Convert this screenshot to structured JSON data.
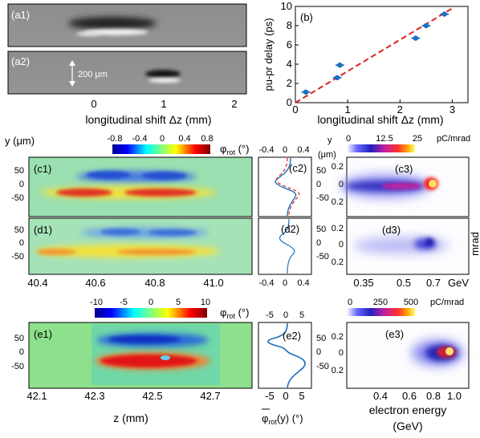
{
  "panel_labels": {
    "a1": "(a1)",
    "a2": "(a2)",
    "b": "(b)",
    "c1": "(c1)",
    "c2": "(c2)",
    "c3": "(c3)",
    "d1": "(d1)",
    "d2": "(d2)",
    "d3": "(d3)",
    "e1": "(e1)",
    "e2": "(e2)",
    "e3": "(e3)"
  },
  "scale_bar": "200 μm",
  "a_axis": {
    "ticks": [
      "0",
      "1",
      "2"
    ],
    "xlabel": "longitudinal shift Δz (mm)"
  },
  "chart_data": [
    {
      "type": "scatter",
      "panel": "(b)",
      "x": [
        0.2,
        0.8,
        0.85,
        2.3,
        2.5,
        2.85
      ],
      "y": [
        1.1,
        2.6,
        3.9,
        6.7,
        8.0,
        9.2
      ],
      "x_error": [
        0.08,
        0.08,
        0.08,
        0.08,
        0.08,
        0.08
      ],
      "fit_line": {
        "x": [
          0,
          3
        ],
        "y": [
          0,
          9.8
        ]
      },
      "xlabel": "longitudinal shift Δz (mm)",
      "ylabel": "pu-pr delay (ps)",
      "xlim": [
        0,
        3.3
      ],
      "ylim": [
        0,
        10
      ],
      "xticks": [
        "0",
        "1",
        "2",
        "3"
      ],
      "yticks": [
        "0",
        "2",
        "4",
        "6",
        "8",
        "10"
      ],
      "grid": false
    }
  ],
  "c1_axis": {
    "ylabel_html": "y (μm)",
    "yticks": [
      "50",
      "0",
      "-50"
    ],
    "colorbar_ticks": [
      "-0.8",
      "-0.4",
      "0",
      "0.4",
      "0.8"
    ],
    "colorbar_label": "φrot (°)"
  },
  "c2_axis": {
    "top_ticks": [
      "-0.4",
      "0",
      "0.4"
    ],
    "right_label": "y",
    "right_unit": "(μm)",
    "right_ticks": [
      "50",
      "0",
      "-50"
    ]
  },
  "c3_axis": {
    "colorbar_ticks": [
      "0",
      "12.5",
      "25"
    ],
    "colorbar_unit": "pC/mrad",
    "yticks": [
      "0.2",
      "0",
      "0.2"
    ]
  },
  "d1_axis": {
    "yticks": [
      "50",
      "0",
      "-50"
    ],
    "xticks": [
      "40.4",
      "40.6",
      "40.8",
      "41.0"
    ]
  },
  "d2_axis": {
    "bottom_ticks": [
      "-0.4",
      "0",
      "0.4"
    ],
    "right_ticks": [
      "50",
      "0",
      "-50"
    ]
  },
  "d3_axis": {
    "ylabel": "mrad",
    "yticks": [
      "0.2",
      "0",
      "0.2"
    ],
    "xticks": [
      "0.35",
      "0.5",
      "0.7"
    ],
    "xunit": "GeV"
  },
  "e1_axis": {
    "yticks": [
      "50",
      "0",
      "-50"
    ],
    "xticks": [
      "42.1",
      "42.3",
      "42.5",
      "42.7"
    ],
    "xlabel": "z (mm)",
    "colorbar_ticks": [
      "-10",
      "-5",
      "0",
      "5",
      "10"
    ],
    "colorbar_label": "φrot (°)"
  },
  "e2_axis": {
    "top_ticks": [
      "-5",
      "0",
      "5"
    ],
    "bottom_ticks": [
      "-5",
      "0",
      "5"
    ],
    "right_ticks": [
      "50",
      "0",
      "-50"
    ],
    "xlabel": "φrot(y) (°)"
  },
  "e3_axis": {
    "colorbar_ticks": [
      "0",
      "250",
      "500"
    ],
    "colorbar_unit": "pC/mrad",
    "yticks": [
      "0.2",
      "0",
      "0.2"
    ],
    "xticks": [
      "0.4",
      "0.6",
      "0.8",
      "1.0"
    ],
    "xlabel": "electron energy",
    "xunit": "(GeV)"
  }
}
